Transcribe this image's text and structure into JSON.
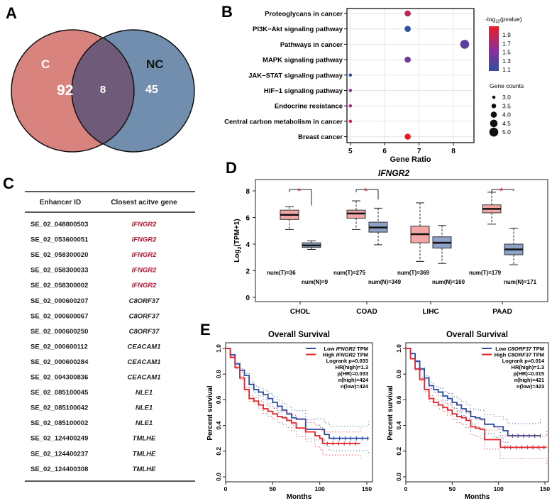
{
  "panels": {
    "a": "A",
    "b": "B",
    "c": "C",
    "d": "D",
    "e": "E"
  },
  "chart_data": [
    {
      "type": "venn",
      "sets": [
        {
          "name": "C",
          "only": 92,
          "color": "#d9837f"
        },
        {
          "name": "NC",
          "only": 45,
          "color": "#5f7ea3"
        }
      ],
      "overlap": 8
    },
    {
      "type": "scatter",
      "xlabel": "Gene Ratio",
      "xlim": [
        4.9,
        8.6
      ],
      "xticks": [
        "5",
        "6",
        "7",
        "8"
      ],
      "grid": true,
      "categories": [
        "Proteoglycans in cancer",
        "PI3K−Akt signaling pathway",
        "Pathways in cancer",
        "MAPK signaling pathway",
        "JAK−STAT signaling pathway",
        "HIF−1 signaling pathway",
        "Endocrine resistance",
        "Central carbon metabolism in cancer",
        "Breast cancer"
      ],
      "gene_ratio": [
        6.67,
        6.67,
        8.33,
        6.67,
        5,
        5,
        5,
        5,
        6.67
      ],
      "gene_counts": [
        4,
        4,
        5,
        4,
        3,
        3,
        3,
        3,
        4
      ],
      "neg_log10_pvalue": [
        1.78,
        1.1,
        1.3,
        1.4,
        1.1,
        1.5,
        1.65,
        1.85,
        2.0
      ],
      "color_legend": {
        "title_parts": [
          "-log",
          "10",
          "(pvalue)"
        ],
        "ticks": [
          "1.9",
          "1.7",
          "1.5",
          "1.3",
          "1.1"
        ],
        "low_color": "#2f4f9f",
        "mid_color": "#8a2f9b",
        "high_color": "#ee1c25"
      },
      "size_legend": {
        "title": "Gene counts",
        "ticks": [
          "3.0",
          "3.5",
          "4.0",
          "4.5",
          "5.0"
        ]
      },
      "legend_position": "right"
    },
    {
      "type": "table",
      "headers": [
        "Enhancer ID",
        "Closest acitve gene"
      ],
      "rows": [
        [
          "SE_02_048800503",
          "IFNGR2"
        ],
        [
          "SE_02_053600051",
          "IFNGR2"
        ],
        [
          "SE_02_058300020",
          "IFNGR2"
        ],
        [
          "SE_02_058300033",
          "IFNGR2"
        ],
        [
          "SE_02_058300002",
          "IFNGR2"
        ],
        [
          "SE_02_000600207",
          "C8ORF37"
        ],
        [
          "SE_02_000600067",
          "C8ORF37"
        ],
        [
          "SE_02_000600250",
          "C8ORF37"
        ],
        [
          "SE_02_000600112",
          "CEACAM1"
        ],
        [
          "SE_02_000600284",
          "CEACAM1"
        ],
        [
          "SE_02_004300836",
          "CEACAM1"
        ],
        [
          "SE_02_085100045",
          "NLE1"
        ],
        [
          "SE_02_085100042",
          "NLE1"
        ],
        [
          "SE_02_085100002",
          "NLE1"
        ],
        [
          "SE_02_124400249",
          "TMLHE"
        ],
        [
          "SE_02_124400237",
          "TMLHE"
        ],
        [
          "SE_02_124400308",
          "TMLHE"
        ]
      ],
      "highlight_gene": "IFNGR2",
      "highlight_color": "#c8102e"
    },
    {
      "type": "box",
      "title": "IFNGR2",
      "ylabel_parts": [
        "Log",
        "2",
        "(TPM+1)"
      ],
      "ylim": [
        0,
        8.8
      ],
      "yticks": [
        "0",
        "2",
        "4",
        "6",
        "8"
      ],
      "categories": [
        "CHOL",
        "COAD",
        "LIHC",
        "PAAD"
      ],
      "tumor_color": "#f4a6a6",
      "normal_color": "#8ea2c8",
      "significance_mark": "*",
      "significant": [
        true,
        true,
        false,
        true
      ],
      "series": [
        {
          "group": "T",
          "labels": [
            "num(T)=36",
            "num(T)=275",
            "num(T)=369",
            "num(T)=179"
          ],
          "stats": [
            [
              5.1,
              5.85,
              6.2,
              6.55,
              6.8
            ],
            [
              5.1,
              5.95,
              6.3,
              6.55,
              7.25
            ],
            [
              2.7,
              4.1,
              4.75,
              5.35,
              7.1
            ],
            [
              5.5,
              6.35,
              6.65,
              6.95,
              7.9
            ]
          ]
        },
        {
          "group": "N",
          "labels": [
            "num(N)=9",
            "num(N)=349",
            "num(N)=160",
            "num(N)=171"
          ],
          "stats": [
            [
              3.6,
              3.75,
              3.9,
              4.1,
              4.25
            ],
            [
              3.95,
              4.9,
              5.25,
              5.65,
              6.7
            ],
            [
              2.55,
              3.7,
              4.1,
              4.55,
              5.4
            ],
            [
              2.45,
              3.2,
              3.6,
              4.0,
              5.2
            ]
          ]
        }
      ]
    },
    {
      "type": "line",
      "title": "Overall Survival",
      "xlabel": "Months",
      "ylabel": "Percent survival",
      "xlim": [
        0,
        155
      ],
      "ylim": [
        0,
        1.05
      ],
      "xticks": [
        "0",
        "50",
        "100",
        "150"
      ],
      "yticks": [
        "0.0",
        "0.2",
        "0.4",
        "0.6",
        "0.8",
        "1.0"
      ],
      "legend": [
        [
          "Low ",
          "IFNGR2",
          " TPM"
        ],
        [
          "High ",
          "IFNGR2",
          " TPM"
        ]
      ],
      "stats": [
        "Logrank p=0.033",
        "HR(high)=1.3",
        "p(HR)=0.033",
        "n(high)=424",
        "n(low)=424"
      ],
      "series": [
        {
          "name": "Low IFNGR2 TPM",
          "color": "#2b4aa8",
          "points": [
            [
              0,
              1
            ],
            [
              5,
              0.95
            ],
            [
              10,
              0.88
            ],
            [
              15,
              0.83
            ],
            [
              20,
              0.79
            ],
            [
              25,
              0.72
            ],
            [
              30,
              0.68
            ],
            [
              35,
              0.66
            ],
            [
              40,
              0.64
            ],
            [
              45,
              0.61
            ],
            [
              50,
              0.58
            ],
            [
              55,
              0.55
            ],
            [
              60,
              0.52
            ],
            [
              65,
              0.49
            ],
            [
              70,
              0.46
            ],
            [
              75,
              0.45
            ],
            [
              85,
              0.37
            ],
            [
              95,
              0.37
            ],
            [
              105,
              0.33
            ],
            [
              110,
              0.3
            ],
            [
              152,
              0.3
            ]
          ]
        },
        {
          "name": "High IFNGR2 TPM",
          "color": "#e8242b",
          "points": [
            [
              0,
              1
            ],
            [
              5,
              0.93
            ],
            [
              10,
              0.85
            ],
            [
              15,
              0.77
            ],
            [
              20,
              0.68
            ],
            [
              25,
              0.61
            ],
            [
              30,
              0.59
            ],
            [
              35,
              0.56
            ],
            [
              40,
              0.53
            ],
            [
              45,
              0.51
            ],
            [
              50,
              0.49
            ],
            [
              55,
              0.47
            ],
            [
              60,
              0.46
            ],
            [
              65,
              0.44
            ],
            [
              70,
              0.42
            ],
            [
              75,
              0.38
            ],
            [
              85,
              0.35
            ],
            [
              95,
              0.32
            ],
            [
              100,
              0.3
            ],
            [
              103,
              0.26
            ],
            [
              143,
              0.26
            ]
          ]
        }
      ]
    },
    {
      "type": "line",
      "title": "Overall Survival",
      "xlabel": "Months",
      "ylabel": "Percent survival",
      "xlim": [
        0,
        155
      ],
      "ylim": [
        0,
        1.05
      ],
      "xticks": [
        "0",
        "50",
        "100",
        "150"
      ],
      "yticks": [
        "0.0",
        "0.2",
        "0.4",
        "0.6",
        "0.8",
        "1.0"
      ],
      "legend": [
        [
          "Low ",
          "C8ORF37",
          " TPM"
        ],
        [
          "High ",
          "C8ORF37",
          " TPM"
        ]
      ],
      "stats": [
        "Logrank p=0.014",
        "HR(high)=1.3",
        "p(HR)=0.015",
        "n(high)=421",
        "n(low)=423"
      ],
      "series": [
        {
          "name": "Low C8ORF37 TPM",
          "color": "#2b4aa8",
          "points": [
            [
              0,
              1
            ],
            [
              5,
              0.96
            ],
            [
              10,
              0.9
            ],
            [
              15,
              0.84
            ],
            [
              20,
              0.77
            ],
            [
              25,
              0.71
            ],
            [
              30,
              0.68
            ],
            [
              35,
              0.66
            ],
            [
              40,
              0.63
            ],
            [
              45,
              0.61
            ],
            [
              50,
              0.58
            ],
            [
              55,
              0.56
            ],
            [
              60,
              0.53
            ],
            [
              65,
              0.51
            ],
            [
              70,
              0.47
            ],
            [
              75,
              0.46
            ],
            [
              80,
              0.45
            ],
            [
              85,
              0.41
            ],
            [
              95,
              0.39
            ],
            [
              105,
              0.36
            ],
            [
              110,
              0.32
            ],
            [
              145,
              0.32
            ]
          ]
        },
        {
          "name": "High C8ORF37 TPM",
          "color": "#e8242b",
          "points": [
            [
              0,
              1
            ],
            [
              5,
              0.92
            ],
            [
              10,
              0.84
            ],
            [
              15,
              0.76
            ],
            [
              20,
              0.68
            ],
            [
              25,
              0.61
            ],
            [
              30,
              0.58
            ],
            [
              35,
              0.56
            ],
            [
              40,
              0.54
            ],
            [
              45,
              0.52
            ],
            [
              50,
              0.49
            ],
            [
              55,
              0.47
            ],
            [
              60,
              0.46
            ],
            [
              65,
              0.44
            ],
            [
              70,
              0.39
            ],
            [
              75,
              0.38
            ],
            [
              80,
              0.37
            ],
            [
              85,
              0.29
            ],
            [
              100,
              0.29
            ],
            [
              102,
              0.23
            ],
            [
              152,
              0.23
            ]
          ]
        }
      ]
    }
  ]
}
